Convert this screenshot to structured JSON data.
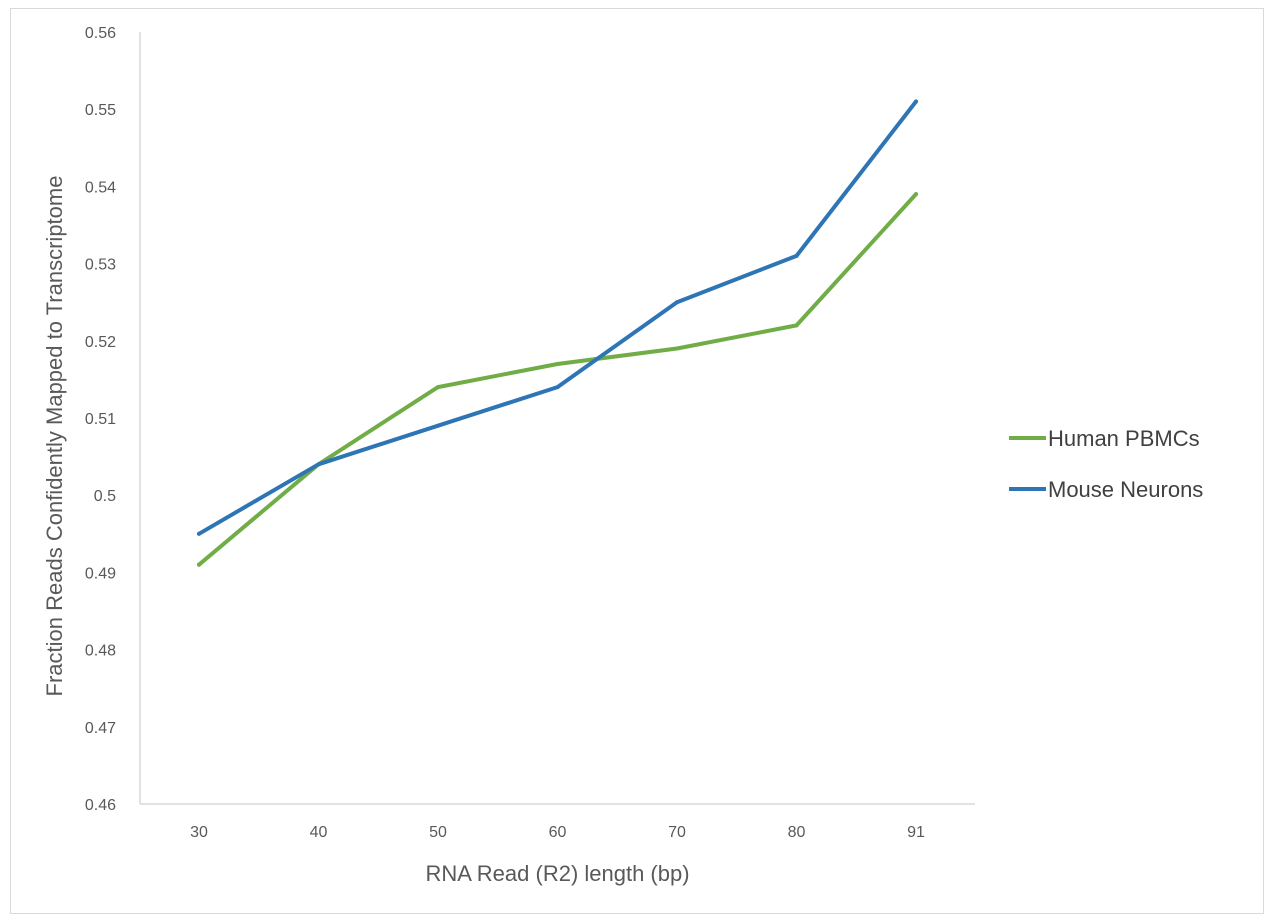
{
  "chart_data": {
    "type": "line",
    "title": "",
    "xlabel": "RNA Read (R2) length (bp)",
    "ylabel": "Fraction Reads Confidently Mapped to Transcriptome",
    "categories": [
      "30",
      "40",
      "50",
      "60",
      "70",
      "80",
      "91"
    ],
    "ylim": [
      0.46,
      0.56
    ],
    "yticks": [
      "0.46",
      "0.47",
      "0.48",
      "0.49",
      "0.5",
      "0.51",
      "0.52",
      "0.53",
      "0.54",
      "0.55",
      "0.56"
    ],
    "grid": false,
    "legend_position": "right",
    "series": [
      {
        "name": "Human PBMCs",
        "color": "#70ad47",
        "values": [
          0.491,
          0.504,
          0.514,
          0.517,
          0.519,
          0.522,
          0.539
        ]
      },
      {
        "name": "Mouse Neurons",
        "color": "#2e75b6",
        "values": [
          0.495,
          0.504,
          0.509,
          0.514,
          0.525,
          0.531,
          0.551
        ]
      }
    ]
  }
}
